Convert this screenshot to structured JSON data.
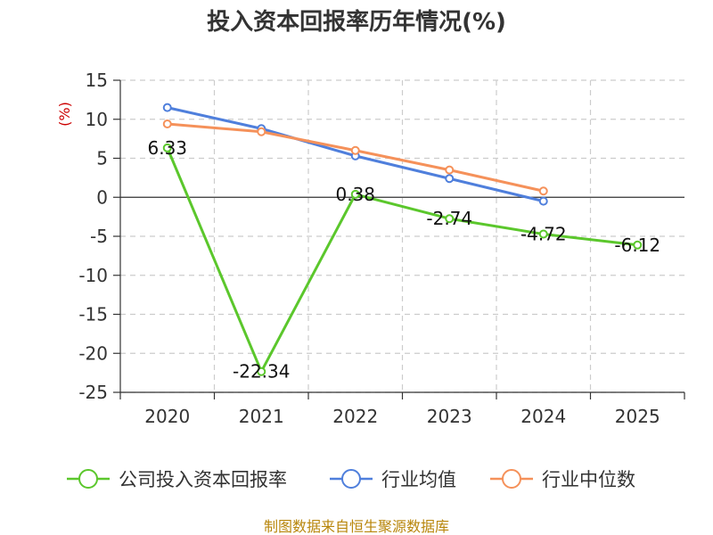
{
  "chart_data": {
    "type": "line",
    "title": "投入资本回报率历年情况(%)",
    "unit_label": "(%)",
    "categories": [
      "2020",
      "2021",
      "2022",
      "2023",
      "2024",
      "2025"
    ],
    "ylim": [
      -25,
      15
    ],
    "yticks": [
      15,
      10,
      5,
      0,
      -5,
      -10,
      -15,
      -20,
      -25
    ],
    "grid": true,
    "legend_position": "bottom",
    "series": [
      {
        "name": "公司投入资本回报率",
        "color": "#5bc72c",
        "values": [
          6.33,
          -22.34,
          0.38,
          -2.74,
          -4.72,
          -6.12
        ],
        "labels": [
          "6.33",
          "-22.34",
          "0.38",
          "-2.74",
          "-4.72",
          "-6.12"
        ]
      },
      {
        "name": "行业均值",
        "color": "#4f7fdc",
        "values": [
          11.5,
          8.8,
          5.3,
          2.4,
          -0.5,
          null
        ]
      },
      {
        "name": "行业中位数",
        "color": "#f5915a",
        "values": [
          9.4,
          8.4,
          6.0,
          3.5,
          0.8,
          null
        ]
      }
    ],
    "source": "制图数据来自恒生聚源数据库"
  }
}
